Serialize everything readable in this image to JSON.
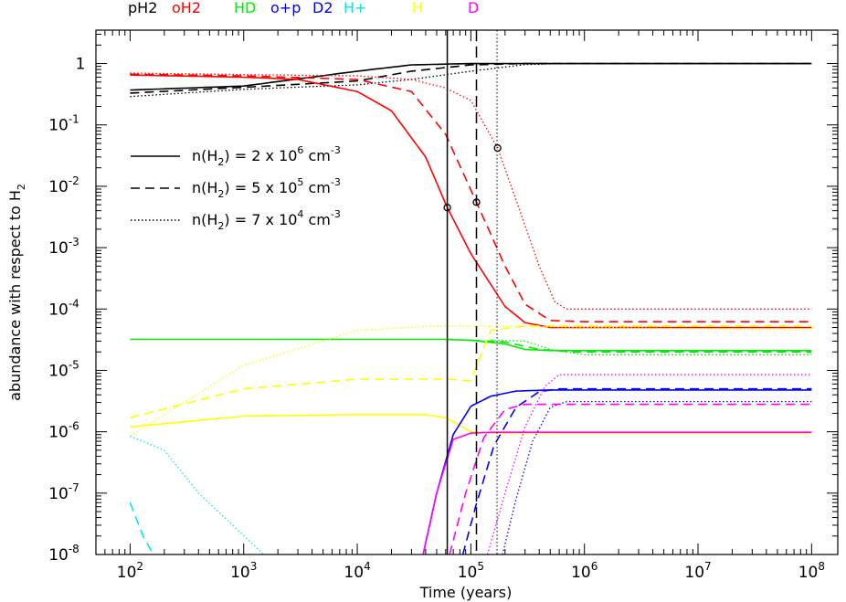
{
  "chart_data": {
    "type": "line",
    "xlabel": "Time (years)",
    "ylabel": "abundance with respect to H2",
    "x_scale": "log",
    "y_scale": "log",
    "xlim": [
      50,
      170000000
    ],
    "ylim": [
      1e-08,
      3.5
    ],
    "x_ticks": [
      {
        "v": 100,
        "b": "10",
        "e": "2"
      },
      {
        "v": 1000,
        "b": "10",
        "e": "3"
      },
      {
        "v": 10000,
        "b": "10",
        "e": "4"
      },
      {
        "v": 100000,
        "b": "10",
        "e": "5"
      },
      {
        "v": 1000000,
        "b": "10",
        "e": "6"
      },
      {
        "v": 10000000,
        "b": "10",
        "e": "7"
      },
      {
        "v": 100000000,
        "b": "10",
        "e": "8"
      }
    ],
    "y_ticks": [
      {
        "v": 1,
        "b": "1",
        "e": ""
      },
      {
        "v": 0.1,
        "b": "10",
        "e": "-1"
      },
      {
        "v": 0.01,
        "b": "10",
        "e": "-2"
      },
      {
        "v": 0.001,
        "b": "10",
        "e": "-3"
      },
      {
        "v": 0.0001,
        "b": "10",
        "e": "-4"
      },
      {
        "v": 1e-05,
        "b": "10",
        "e": "-5"
      },
      {
        "v": 1e-06,
        "b": "10",
        "e": "-6"
      },
      {
        "v": 1e-07,
        "b": "10",
        "e": "-7"
      },
      {
        "v": 1e-08,
        "b": "10",
        "e": "-8"
      }
    ],
    "species_legend": [
      {
        "label": "pH2",
        "color": "#000000"
      },
      {
        "label": "oH2",
        "color": "#ff0000"
      },
      {
        "label": "HD",
        "color": "#00ee00"
      },
      {
        "label": "o+p",
        "color": "#0000ff"
      },
      {
        "label": "D2",
        "color": "#0000ff"
      },
      {
        "label": "H+",
        "color": "#00e5ee"
      },
      {
        "label": "H",
        "color": "#ffff00"
      },
      {
        "label": "D",
        "color": "#ff00ff"
      }
    ],
    "density_key": [
      {
        "style": "solid",
        "text": "n(H2) = 2 x 10^6 cm^-3",
        "pre": "n(H",
        "sub": "2",
        "mid": ") = 2 x 10",
        "sup": "6",
        "post": " cm",
        "unit_sup": "-3"
      },
      {
        "style": "dashed",
        "text": "n(H2) = 5 x 10^5 cm^-3",
        "pre": "n(H",
        "sub": "2",
        "mid": ") = 5 x 10",
        "sup": "5",
        "post": " cm",
        "unit_sup": "-3"
      },
      {
        "style": "dotted",
        "text": "n(H2) = 7 x 10^4 cm^-3",
        "pre": "n(H",
        "sub": "2",
        "mid": ") = 7 x 10",
        "sup": "4",
        "post": " cm",
        "unit_sup": "-3"
      }
    ],
    "vertical_lines": [
      {
        "x": 62000,
        "style": "solid"
      },
      {
        "x": 112000,
        "style": "dashed"
      },
      {
        "x": 170000,
        "style": "dotted"
      }
    ],
    "markers": [
      {
        "x": 62000,
        "y": 0.0045,
        "style": "solid"
      },
      {
        "x": 112000,
        "y": 0.0055,
        "style": "dashed"
      },
      {
        "x": 172000,
        "y": 0.042,
        "style": "dotted"
      }
    ],
    "series": [
      {
        "species": "pH2",
        "style": "solid",
        "color": "#000000",
        "points": [
          [
            100,
            0.37
          ],
          [
            1000,
            0.43
          ],
          [
            10000,
            0.75
          ],
          [
            30000,
            0.95
          ],
          [
            100000,
            1.0
          ],
          [
            100000000,
            1.0
          ]
        ]
      },
      {
        "species": "pH2",
        "style": "dashed",
        "color": "#000000",
        "points": [
          [
            100,
            0.33
          ],
          [
            1000,
            0.41
          ],
          [
            10000,
            0.52
          ],
          [
            30000,
            0.75
          ],
          [
            100000,
            0.95
          ],
          [
            300000,
            1.0
          ],
          [
            100000000,
            1.0
          ]
        ]
      },
      {
        "species": "pH2",
        "style": "dotted",
        "color": "#000000",
        "points": [
          [
            100,
            0.29
          ],
          [
            1000,
            0.38
          ],
          [
            10000,
            0.45
          ],
          [
            30000,
            0.55
          ],
          [
            100000,
            0.75
          ],
          [
            300000,
            0.96
          ],
          [
            700000,
            1.0
          ],
          [
            100000000,
            1.0
          ]
        ]
      },
      {
        "species": "oH2",
        "style": "solid",
        "color": "#ff0000",
        "points": [
          [
            100,
            0.65
          ],
          [
            1000,
            0.6
          ],
          [
            3000,
            0.55
          ],
          [
            10000,
            0.35
          ],
          [
            20000,
            0.17
          ],
          [
            40000,
            0.03
          ],
          [
            62000,
            0.0045
          ],
          [
            100000,
            0.0008
          ],
          [
            150000,
            0.00025
          ],
          [
            200000,
            0.00011
          ],
          [
            300000,
            6e-05
          ],
          [
            500000,
            5e-05
          ],
          [
            100000000,
            5e-05
          ]
        ]
      },
      {
        "species": "oH2",
        "style": "dashed",
        "color": "#ff0000",
        "points": [
          [
            100,
            0.67
          ],
          [
            1000,
            0.63
          ],
          [
            10000,
            0.55
          ],
          [
            30000,
            0.35
          ],
          [
            60000,
            0.07
          ],
          [
            112000,
            0.0055
          ],
          [
            200000,
            0.0005
          ],
          [
            300000,
            0.00012
          ],
          [
            500000,
            6.5e-05
          ],
          [
            1000000,
            6.2e-05
          ],
          [
            100000000,
            6.2e-05
          ]
        ]
      },
      {
        "species": "oH2",
        "style": "dotted",
        "color": "#ff0000",
        "points": [
          [
            100,
            0.7
          ],
          [
            1000,
            0.66
          ],
          [
            10000,
            0.63
          ],
          [
            30000,
            0.55
          ],
          [
            60000,
            0.4
          ],
          [
            100000,
            0.25
          ],
          [
            172000,
            0.042
          ],
          [
            250000,
            0.006
          ],
          [
            400000,
            0.0005
          ],
          [
            550000,
            0.00013
          ],
          [
            700000,
            0.0001
          ],
          [
            100000000,
            0.0001
          ]
        ]
      },
      {
        "species": "HD",
        "style": "solid",
        "color": "#00ee00",
        "points": [
          [
            100,
            3.2e-05
          ],
          [
            60000,
            3.2e-05
          ],
          [
            100000,
            3.1e-05
          ],
          [
            200000,
            2.7e-05
          ],
          [
            300000,
            2.2e-05
          ],
          [
            500000,
            2.1e-05
          ],
          [
            100000000,
            2.1e-05
          ]
        ]
      },
      {
        "species": "HD",
        "style": "dashed",
        "color": "#00ee00",
        "points": [
          [
            100000,
            3.1e-05
          ],
          [
            200000,
            2.9e-05
          ],
          [
            400000,
            2.2e-05
          ],
          [
            800000,
            2e-05
          ],
          [
            100000000,
            2e-05
          ]
        ]
      },
      {
        "species": "HD",
        "style": "dotted",
        "color": "#00ee00",
        "points": [
          [
            150000,
            3.1e-05
          ],
          [
            300000,
            3e-05
          ],
          [
            500000,
            2.2e-05
          ],
          [
            1000000,
            1.8e-05
          ],
          [
            100000000,
            1.8e-05
          ]
        ]
      },
      {
        "species": "H",
        "style": "solid",
        "color": "#ffff00",
        "points": [
          [
            100,
            1.2e-06
          ],
          [
            1000,
            1.8e-06
          ],
          [
            10000,
            1.9e-06
          ],
          [
            40000,
            1.9e-06
          ],
          [
            60000,
            1.7e-06
          ],
          [
            100000,
            1e-06
          ],
          [
            150000,
            9.5e-07
          ],
          [
            100000000,
            9.5e-07
          ]
        ]
      },
      {
        "species": "H",
        "style": "dashed",
        "color": "#ffff00",
        "points": [
          [
            100,
            1.7e-06
          ],
          [
            1000,
            5e-06
          ],
          [
            10000,
            7.2e-06
          ],
          [
            60000,
            7.2e-06
          ],
          [
            100000,
            6.8e-06
          ],
          [
            150000,
            4.5e-05
          ],
          [
            300000,
            5.3e-05
          ],
          [
            100000000,
            5.3e-05
          ]
        ]
      },
      {
        "species": "H",
        "style": "dotted",
        "color": "#ffff00",
        "points": [
          [
            100,
            8.5e-07
          ],
          [
            1000,
            1.2e-05
          ],
          [
            10000,
            4.5e-05
          ],
          [
            40000,
            5.2e-05
          ],
          [
            100000,
            5.3e-05
          ],
          [
            300000,
            5.2e-05
          ],
          [
            100000000,
            4.5e-05
          ]
        ]
      },
      {
        "species": "o+p",
        "style": "solid",
        "color": "#0000ff",
        "points": [
          [
            38000,
            1e-08
          ],
          [
            50000,
            1e-07
          ],
          [
            70000,
            9e-07
          ],
          [
            100000,
            2.6e-06
          ],
          [
            150000,
            3.8e-06
          ],
          [
            250000,
            4.6e-06
          ],
          [
            500000,
            4.8e-06
          ],
          [
            100000000,
            4.8e-06
          ]
        ]
      },
      {
        "species": "o+p",
        "style": "dashed",
        "color": "#0000ff",
        "points": [
          [
            85000,
            1e-08
          ],
          [
            110000,
            6e-08
          ],
          [
            160000,
            6e-07
          ],
          [
            250000,
            2.5e-06
          ],
          [
            400000,
            4.5e-06
          ],
          [
            600000,
            5e-06
          ],
          [
            100000000,
            5e-06
          ]
        ]
      },
      {
        "species": "o+p",
        "style": "dotted",
        "color": "#0000ff",
        "points": [
          [
            190000,
            1e-08
          ],
          [
            250000,
            8e-08
          ],
          [
            350000,
            7e-07
          ],
          [
            500000,
            2.5e-06
          ],
          [
            700000,
            3.1e-06
          ],
          [
            100000000,
            3.1e-06
          ]
        ]
      },
      {
        "species": "D",
        "style": "solid",
        "color": "#ff00ff",
        "points": [
          [
            38000,
            1e-08
          ],
          [
            50000,
            1e-07
          ],
          [
            70000,
            7.5e-07
          ],
          [
            100000,
            9.5e-07
          ],
          [
            150000,
            9.8e-07
          ],
          [
            100000000,
            9.8e-07
          ]
        ]
      },
      {
        "species": "D",
        "style": "dashed",
        "color": "#ff00ff",
        "points": [
          [
            65000,
            1e-08
          ],
          [
            90000,
            1e-07
          ],
          [
            130000,
            8e-07
          ],
          [
            200000,
            2.3e-06
          ],
          [
            300000,
            2.8e-06
          ],
          [
            100000000,
            2.8e-06
          ]
        ]
      },
      {
        "species": "D",
        "style": "dotted",
        "color": "#ff00ff",
        "points": [
          [
            140000,
            1e-08
          ],
          [
            200000,
            1e-07
          ],
          [
            300000,
            1.2e-06
          ],
          [
            450000,
            5.5e-06
          ],
          [
            600000,
            8.5e-06
          ],
          [
            100000000,
            8.5e-06
          ]
        ]
      },
      {
        "species": "H+",
        "style": "dashed",
        "color": "#00e5ee",
        "points": [
          [
            100,
            7e-08
          ],
          [
            130,
            2e-08
          ],
          [
            160,
            1e-08
          ]
        ]
      },
      {
        "species": "H+",
        "style": "dotted",
        "color": "#00e5ee",
        "points": [
          [
            100,
            8.5e-07
          ],
          [
            200,
            5e-07
          ],
          [
            400,
            1e-07
          ],
          [
            800,
            3e-08
          ],
          [
            1500,
            1e-08
          ]
        ]
      }
    ]
  }
}
